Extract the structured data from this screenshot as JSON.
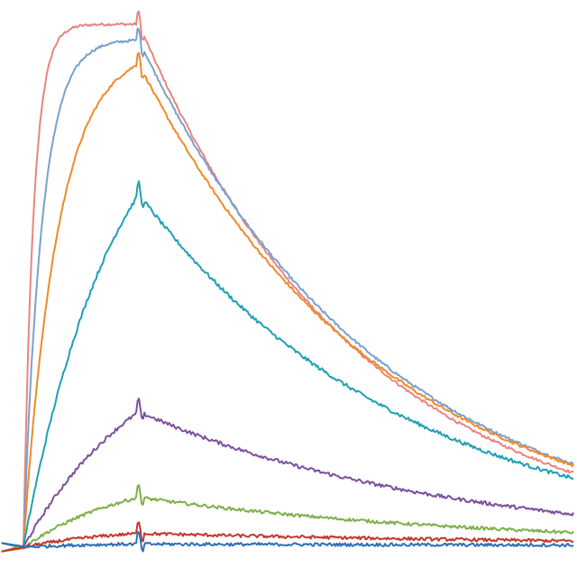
{
  "chart_data": {
    "type": "line",
    "title": "",
    "xlabel": "",
    "ylabel": "",
    "grid": false,
    "legend": "none",
    "xlim": [
      0,
      100
    ],
    "ylim": [
      0,
      100
    ],
    "association_end": 21,
    "series": [
      {
        "color": "#e8857f",
        "plateau": 98.5,
        "ka": 0.55,
        "kd": 0.0247,
        "noise": 0.25
      },
      {
        "color": "#7aa0cf",
        "plateau": 95.5,
        "ka": 0.3,
        "kd": 0.0229,
        "noise": 0.25
      },
      {
        "color": "#ef8a2a",
        "plateau": 91.0,
        "ka": 0.16,
        "kd": 0.0225,
        "noise": 0.25
      },
      {
        "color": "#1f9fb5",
        "plateau": 66.5,
        "ka": 0.06,
        "kd": 0.0207,
        "noise": 0.35
      },
      {
        "color": "#7d4f9e",
        "plateau": 25.5,
        "ka": 0.045,
        "kd": 0.0178,
        "noise": 0.35
      },
      {
        "color": "#7db04a",
        "plateau": 9.4,
        "ka": 0.05,
        "kd": 0.0155,
        "noise": 0.3
      },
      {
        "color": "#c0392b",
        "plateau": 2.6,
        "ka": 0.06,
        "kd": 0.01,
        "noise": 0.3
      },
      {
        "color": "#2e6fb5",
        "plateau": 0.6,
        "ka": 0.08,
        "kd": 0.005,
        "noise": 0.3
      }
    ]
  }
}
